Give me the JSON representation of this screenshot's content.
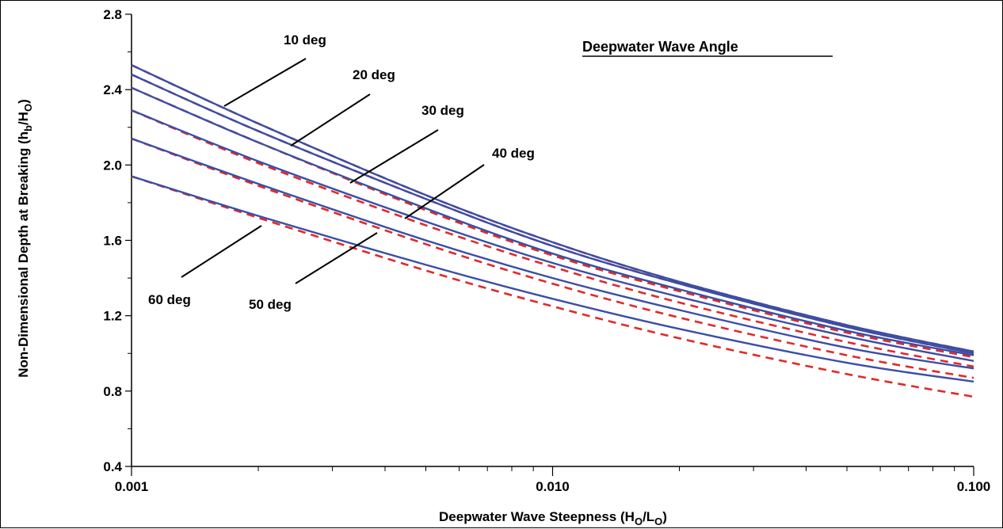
{
  "chart_data": {
    "type": "line",
    "title": "Deepwater Wave Angle",
    "xlabel": "Deepwater Wave Steepness (H",
    "xlabel_sub1": "O",
    "xlabel_mid": "/L",
    "xlabel_sub2": "O",
    "xlabel_end": ")",
    "ylabel": "Non-Dimensional Depth at Breaking (h",
    "ylabel_sub1": "b",
    "ylabel_mid": "/H",
    "ylabel_sub2": "O",
    "ylabel_end": ")",
    "x_scale": "log",
    "xlim": [
      0.001,
      0.1
    ],
    "ylim": [
      0.4,
      2.8
    ],
    "x_ticks": [
      0.001,
      0.01,
      0.1
    ],
    "x_tick_labels": [
      "0.001",
      "0.010",
      "0.100"
    ],
    "y_ticks": [
      0.4,
      0.8,
      1.2,
      1.6,
      2.0,
      2.4,
      2.8
    ],
    "y_tick_labels": [
      "0.4",
      "0.8",
      "1.2",
      "1.6",
      "2.0",
      "2.4",
      "2.8"
    ],
    "grid": false,
    "annotations": [
      "10 deg",
      "20 deg",
      "30 deg",
      "40 deg",
      "50 deg",
      "60 deg"
    ],
    "solid_color": "#3a4ea6",
    "dashed_color": "#e02a2a",
    "x": [
      0.001,
      0.002,
      0.005,
      0.01,
      0.02,
      0.05,
      0.1
    ],
    "series": [
      {
        "style": "solid",
        "values": [
          2.53,
          2.22,
          1.84,
          1.59,
          1.38,
          1.15,
          1.01
        ]
      },
      {
        "style": "dashed",
        "values": [
          2.53,
          2.22,
          1.84,
          1.59,
          1.38,
          1.15,
          1.01
        ]
      },
      {
        "style": "solid",
        "values": [
          2.48,
          2.18,
          1.82,
          1.57,
          1.37,
          1.14,
          1.0
        ]
      },
      {
        "style": "dashed",
        "values": [
          2.48,
          2.18,
          1.82,
          1.57,
          1.37,
          1.14,
          1.0
        ]
      },
      {
        "style": "solid",
        "values": [
          2.41,
          2.12,
          1.77,
          1.53,
          1.34,
          1.12,
          0.99
        ]
      },
      {
        "style": "dashed",
        "values": [
          2.41,
          2.12,
          1.76,
          1.52,
          1.33,
          1.11,
          0.98
        ]
      },
      {
        "style": "solid",
        "values": [
          2.29,
          2.02,
          1.7,
          1.48,
          1.3,
          1.09,
          0.96
        ]
      },
      {
        "style": "dashed",
        "values": [
          2.29,
          2.01,
          1.68,
          1.46,
          1.27,
          1.06,
          0.93
        ]
      },
      {
        "style": "solid",
        "values": [
          2.14,
          1.9,
          1.6,
          1.4,
          1.23,
          1.03,
          0.92
        ]
      },
      {
        "style": "dashed",
        "values": [
          2.14,
          1.89,
          1.58,
          1.37,
          1.19,
          0.99,
          0.87
        ]
      },
      {
        "style": "solid",
        "values": [
          1.94,
          1.73,
          1.47,
          1.29,
          1.13,
          0.95,
          0.85
        ]
      },
      {
        "style": "dashed",
        "values": [
          1.94,
          1.72,
          1.44,
          1.25,
          1.08,
          0.89,
          0.77
        ]
      }
    ]
  }
}
